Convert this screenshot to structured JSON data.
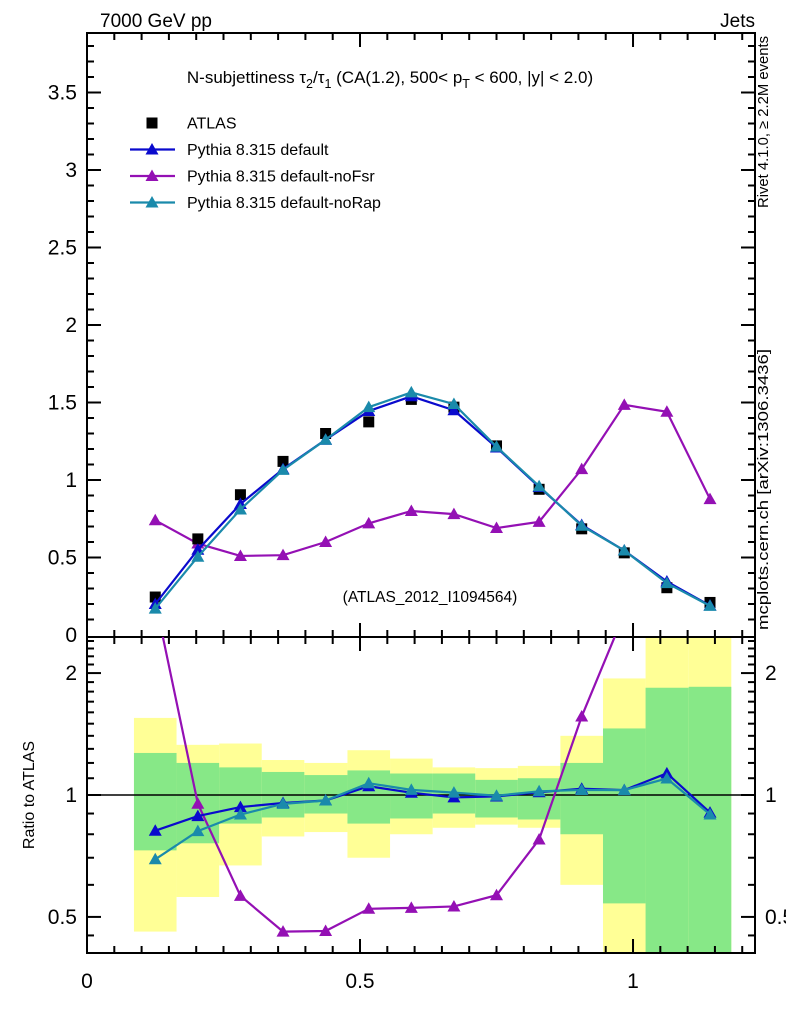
{
  "header": {
    "left": "7000 GeV pp",
    "right": "Jets"
  },
  "title_segments": [
    {
      "t": "N-subjettiness τ"
    },
    {
      "t": "2",
      "sub": true
    },
    {
      "t": "/τ"
    },
    {
      "t": "1",
      "sub": true
    },
    {
      "t": " (CA(1.2), 500< p"
    },
    {
      "t": "T",
      "sub": true
    },
    {
      "t": " < 600, |y| < 2.0)"
    }
  ],
  "legend": {
    "items": [
      {
        "label": "ATLAS",
        "color": "#000000",
        "marker": "square",
        "line": false
      },
      {
        "label": "Pythia 8.315 default",
        "color": "#0a0acd",
        "marker": "triangle",
        "line": true
      },
      {
        "label": "Pythia 8.315 default-noFsr",
        "color": "#9410b4",
        "marker": "triangle",
        "line": true
      },
      {
        "label": "Pythia 8.315 default-noRap",
        "color": "#1a8aab",
        "marker": "triangle",
        "line": true
      }
    ]
  },
  "side_notes": {
    "top": "Rivet 4.1.0, ≥ 2.2M events",
    "bottom": "mcplots.cern.ch [arXiv:1306.3436]",
    "color": "#8c8c8c"
  },
  "watermark": {
    "text": "(ATLAS_2012_I1094564)",
    "color": "#a8a8a8"
  },
  "ratio_label": "Ratio to ATLAS",
  "chart_data": {
    "type": "line",
    "title": "N-subjettiness τ2/τ1 (CA(1.2), 500< pT < 600, |y| < 2.0)",
    "x": [
      0.125,
      0.203,
      0.281,
      0.359,
      0.437,
      0.516,
      0.594,
      0.672,
      0.75,
      0.828,
      0.906,
      0.984,
      1.062,
      1.141
    ],
    "bin_edges": [
      0.086,
      0.164,
      0.242,
      0.32,
      0.398,
      0.477,
      0.555,
      0.633,
      0.711,
      0.789,
      0.867,
      0.945,
      1.023,
      1.102,
      1.18
    ],
    "series": [
      {
        "name": "ATLAS",
        "color": "#000000",
        "marker": "square",
        "line": false,
        "values": [
          0.245,
          0.62,
          0.905,
          1.12,
          1.3,
          1.375,
          1.52,
          1.47,
          1.22,
          0.94,
          0.685,
          0.53,
          0.305,
          0.21
        ]
      },
      {
        "name": "Pythia 8.315 default",
        "color": "#0a0acd",
        "marker": "triangle",
        "line": true,
        "values": [
          0.2,
          0.55,
          0.845,
          1.07,
          1.26,
          1.445,
          1.54,
          1.45,
          1.21,
          0.955,
          0.71,
          0.545,
          0.345,
          0.19
        ]
      },
      {
        "name": "Pythia 8.315 default-noFsr",
        "color": "#9410b4",
        "marker": "triangle",
        "line": true,
        "values": [
          0.74,
          0.59,
          0.51,
          0.515,
          0.6,
          0.72,
          0.8,
          0.78,
          0.69,
          0.73,
          1.07,
          1.485,
          1.44,
          0.877
        ]
      },
      {
        "name": "Pythia 8.315 default-noRap",
        "color": "#1a8aab",
        "marker": "triangle",
        "line": true,
        "values": [
          0.17,
          0.505,
          0.81,
          1.065,
          1.26,
          1.47,
          1.565,
          1.49,
          1.215,
          0.96,
          0.705,
          0.545,
          0.335,
          0.188
        ]
      }
    ],
    "ratio_to": "ATLAS",
    "x_axis": {
      "min": 0,
      "max": 1.2234,
      "major_ticks": [
        0,
        0.5,
        1
      ],
      "labels": [
        "0",
        "0.5",
        "1"
      ],
      "minor_step": 0.05
    },
    "y_axis_main": {
      "min": 0,
      "max": 3.88,
      "major_step": 0.5,
      "minor_step": 0.1,
      "ticks": [
        0,
        0.5,
        1,
        1.5,
        2,
        2.5,
        3,
        3.5
      ],
      "labels": [
        "0",
        "0.5",
        "1",
        "1.5",
        "2",
        "2.5",
        "3",
        "3.5"
      ]
    },
    "y_axis_ratio": {
      "scale": "log",
      "min": 0.407,
      "max": 2.455,
      "major_ticks": [
        0.5,
        1,
        2
      ],
      "labels": [
        "0.5",
        "1",
        "2"
      ],
      "reference_line": 1
    },
    "ratio_bands": {
      "outer_color": "#ffff96",
      "inner_color": "#87e887",
      "bins": [
        {
          "lo": 0.46,
          "hi": 1.55,
          "ilo": 0.73,
          "ihi": 1.27
        },
        {
          "lo": 0.56,
          "hi": 1.33,
          "ilo": 0.76,
          "ihi": 1.2
        },
        {
          "lo": 0.67,
          "hi": 1.34,
          "ilo": 0.85,
          "ihi": 1.17
        },
        {
          "lo": 0.79,
          "hi": 1.22,
          "ilo": 0.88,
          "ihi": 1.14
        },
        {
          "lo": 0.81,
          "hi": 1.2,
          "ilo": 0.9,
          "ihi": 1.12
        },
        {
          "lo": 0.7,
          "hi": 1.29,
          "ilo": 0.85,
          "ihi": 1.15
        },
        {
          "lo": 0.8,
          "hi": 1.23,
          "ilo": 0.875,
          "ihi": 1.13
        },
        {
          "lo": 0.83,
          "hi": 1.17,
          "ilo": 0.9,
          "ihi": 1.13
        },
        {
          "lo": 0.845,
          "hi": 1.165,
          "ilo": 0.88,
          "ihi": 1.09
        },
        {
          "lo": 0.83,
          "hi": 1.18,
          "ilo": 0.87,
          "ihi": 1.1
        },
        {
          "lo": 0.6,
          "hi": 1.4,
          "ilo": 0.8,
          "ihi": 1.2
        },
        {
          "lo": 0.405,
          "hi": 1.94,
          "ilo": 0.54,
          "ihi": 1.46
        },
        {
          "lo": 0.405,
          "hi": 2.46,
          "ilo": 0.405,
          "ihi": 1.84
        },
        {
          "lo": 0.405,
          "hi": 2.46,
          "ilo": 0.405,
          "ihi": 1.85
        }
      ]
    }
  }
}
